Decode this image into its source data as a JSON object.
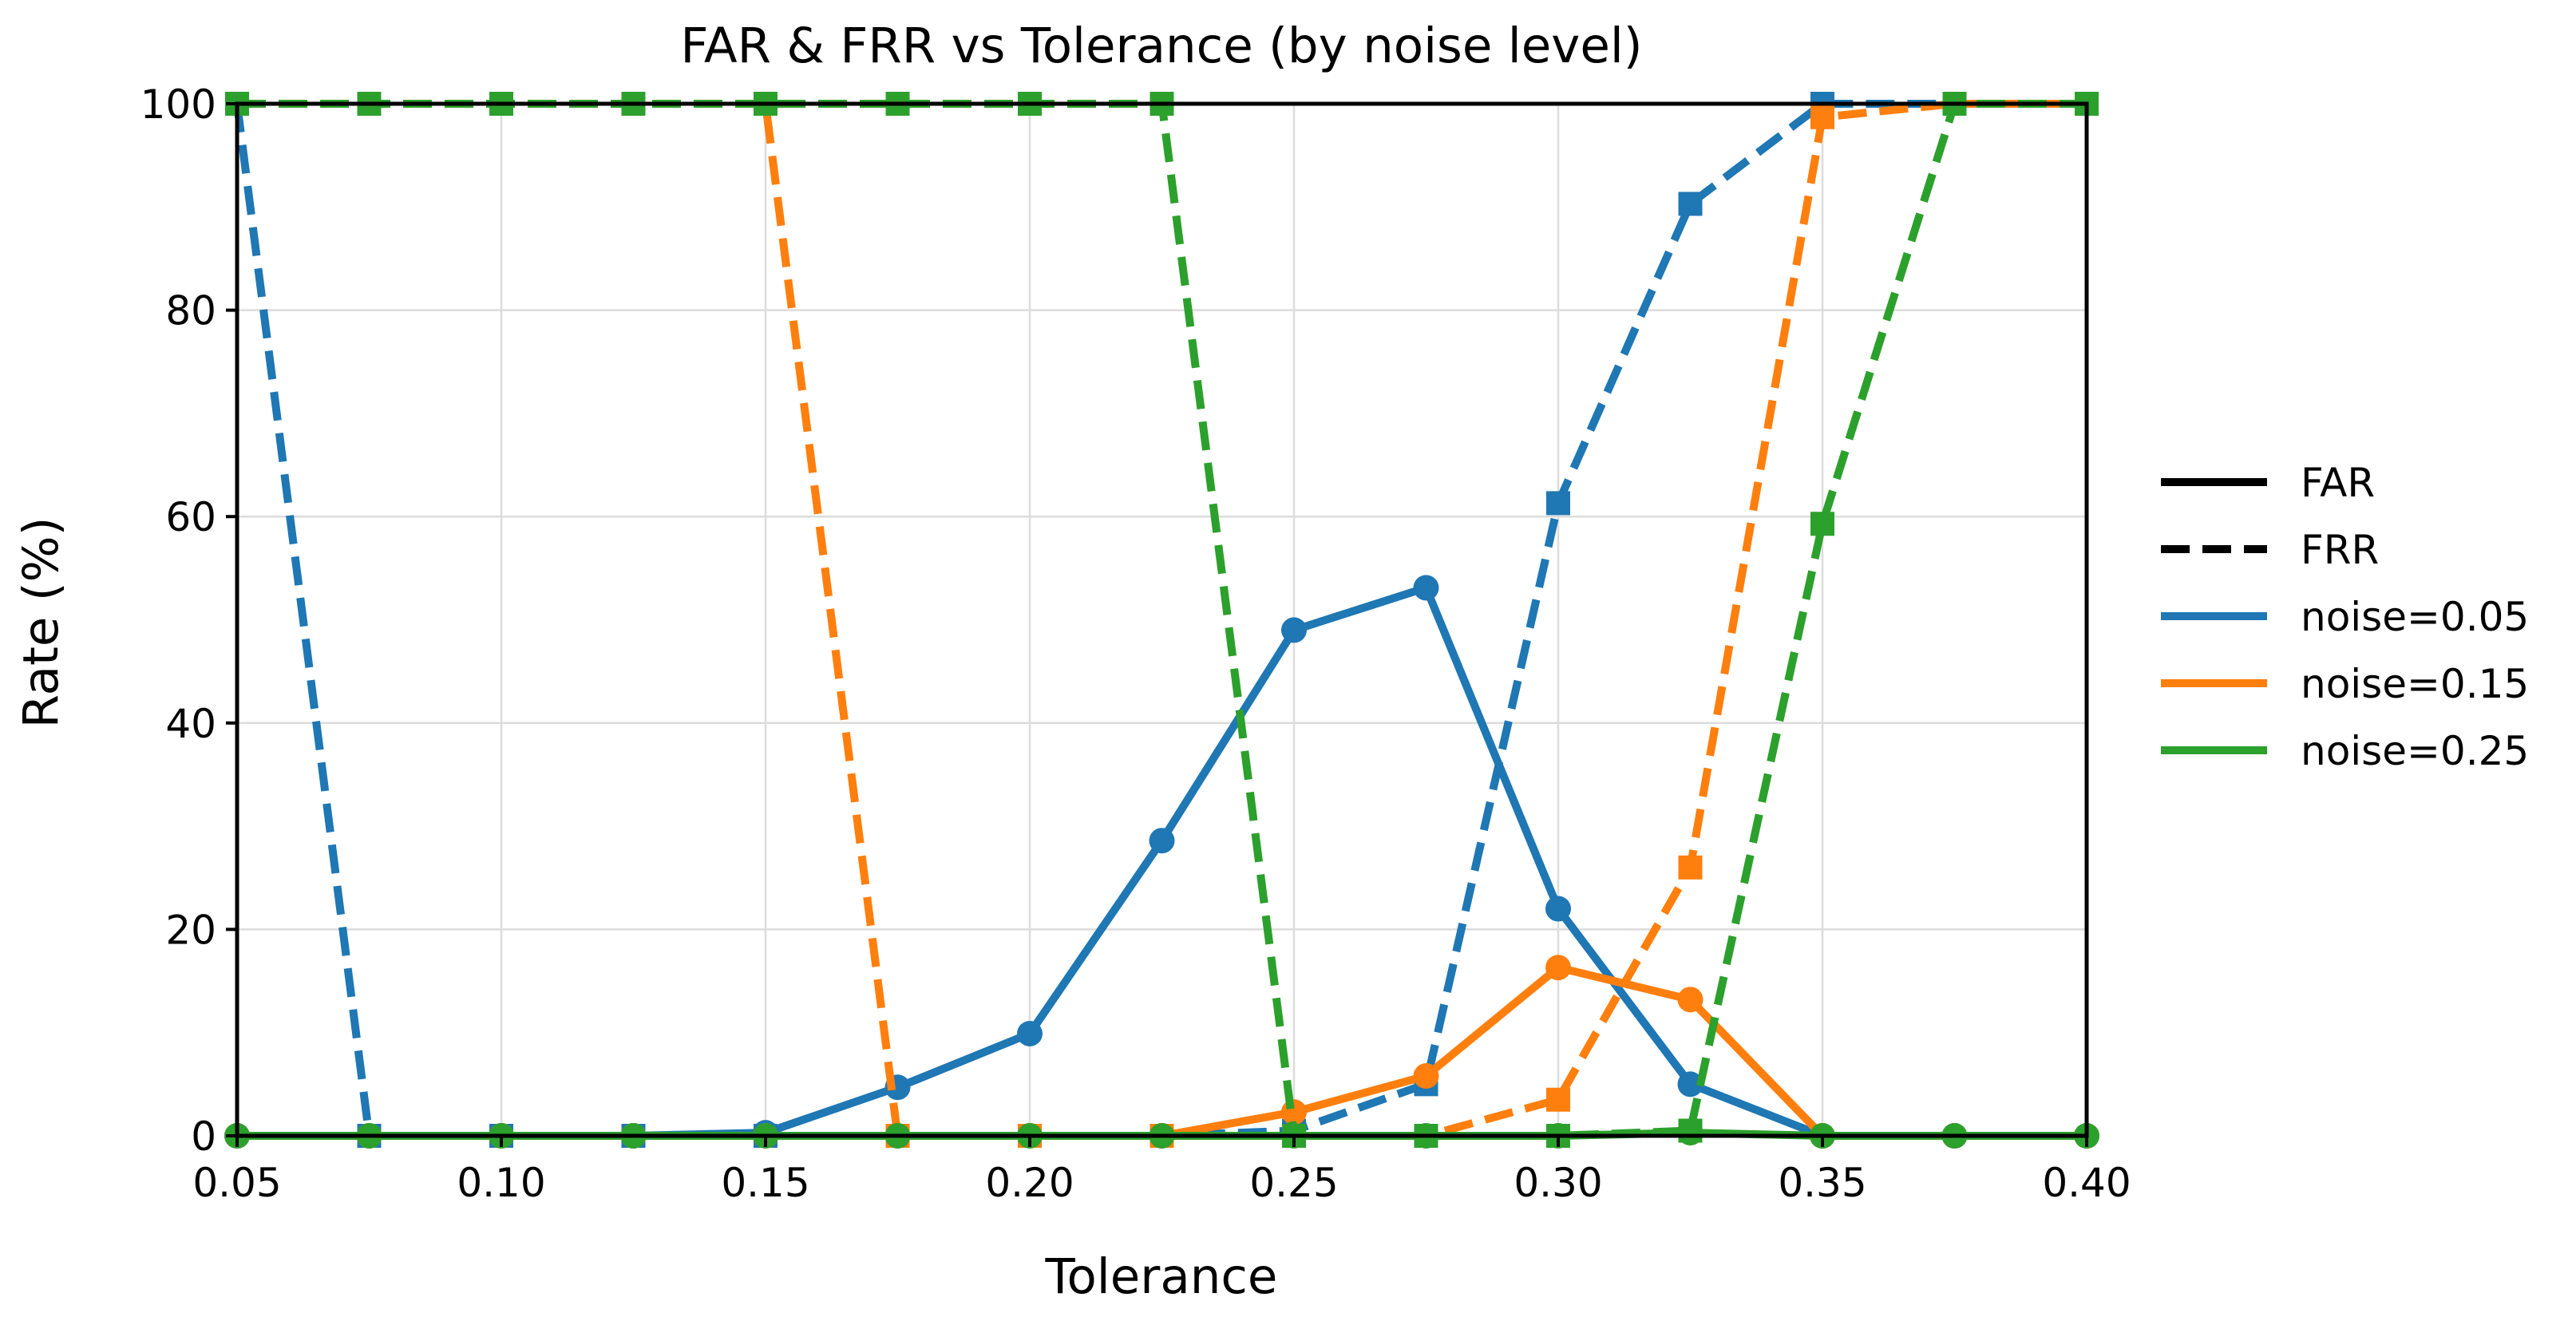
{
  "chart_data": {
    "type": "line",
    "title": "FAR & FRR vs Tolerance (by noise level)",
    "xlabel": "Tolerance",
    "ylabel": "Rate (%)",
    "xlim": [
      0.05,
      0.4
    ],
    "ylim": [
      0,
      100
    ],
    "xticks": [
      0.05,
      0.1,
      0.15,
      0.2,
      0.25,
      0.3,
      0.35,
      0.4
    ],
    "xtick_labels": [
      "0.05",
      "0.10",
      "0.15",
      "0.20",
      "0.25",
      "0.30",
      "0.35",
      "0.40"
    ],
    "yticks": [
      0,
      20,
      40,
      60,
      80,
      100
    ],
    "ytick_labels": [
      "0",
      "20",
      "40",
      "60",
      "80",
      "100"
    ],
    "grid": true,
    "legend_position": "right-outside",
    "legend": [
      {
        "label": "FAR",
        "color": "#000000",
        "style": "solid"
      },
      {
        "label": "FRR",
        "color": "#000000",
        "style": "dashed"
      },
      {
        "label": "noise=0.05",
        "color": "#1f77b4",
        "style": "solid"
      },
      {
        "label": "noise=0.15",
        "color": "#ff7f0e",
        "style": "solid"
      },
      {
        "label": "noise=0.25",
        "color": "#2ca02c",
        "style": "solid"
      }
    ],
    "x": [
      0.05,
      0.075,
      0.1,
      0.125,
      0.15,
      0.175,
      0.2,
      0.225,
      0.25,
      0.275,
      0.3,
      0.325,
      0.35,
      0.375,
      0.4
    ],
    "series": [
      {
        "name": "noise=0.05 FAR",
        "noise": "0.05",
        "metric": "FAR",
        "color": "#1f77b4",
        "style": "solid",
        "marker": "circle",
        "values": [
          0,
          0,
          0,
          0,
          0.3,
          4.7,
          9.9,
          28.6,
          49.0,
          53.1,
          22.0,
          5.0,
          0,
          0,
          0
        ]
      },
      {
        "name": "noise=0.05 FRR",
        "noise": "0.05",
        "metric": "FRR",
        "color": "#1f77b4",
        "style": "dashed",
        "marker": "square",
        "values": [
          100,
          0,
          0,
          0,
          0,
          0,
          0,
          0,
          0.5,
          5.0,
          61.3,
          90.3,
          100,
          100,
          100
        ]
      },
      {
        "name": "noise=0.15 FAR",
        "noise": "0.15",
        "metric": "FAR",
        "color": "#ff7f0e",
        "style": "solid",
        "marker": "circle",
        "values": [
          0,
          0,
          0,
          0,
          0,
          0,
          0,
          0,
          2.3,
          5.8,
          16.3,
          13.2,
          0,
          0,
          0
        ]
      },
      {
        "name": "noise=0.15 FRR",
        "noise": "0.15",
        "metric": "FRR",
        "color": "#ff7f0e",
        "style": "dashed",
        "marker": "square",
        "values": [
          100,
          100,
          100,
          100,
          100,
          0,
          0,
          0,
          0,
          0,
          3.5,
          26.0,
          98.7,
          100,
          100
        ]
      },
      {
        "name": "noise=0.25 FAR",
        "noise": "0.25",
        "metric": "FAR",
        "color": "#2ca02c",
        "style": "solid",
        "marker": "circle",
        "values": [
          0,
          0,
          0,
          0,
          0,
          0,
          0,
          0,
          0,
          0,
          0,
          0.3,
          0,
          0,
          0
        ]
      },
      {
        "name": "noise=0.25 FRR",
        "noise": "0.25",
        "metric": "FRR",
        "color": "#2ca02c",
        "style": "dashed",
        "marker": "square",
        "values": [
          100,
          100,
          100,
          100,
          100,
          100,
          100,
          100,
          0,
          0,
          0,
          0.5,
          59.3,
          100,
          100
        ]
      }
    ]
  }
}
